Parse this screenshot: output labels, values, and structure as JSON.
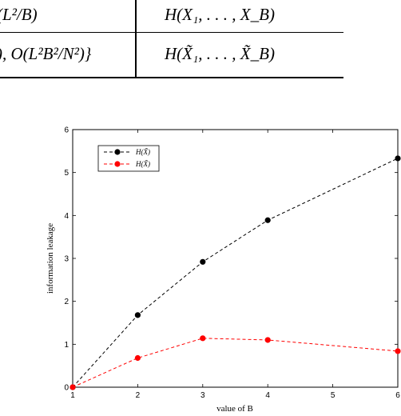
{
  "table": {
    "row1": {
      "left_cell": "(L²/B)",
      "right_cell": "H(X₁, . . . , X_B)"
    },
    "row2": {
      "left_cell": "), O(L²B²/N²)}",
      "right_cell": "H(X̃₁, . . . , X̃_B)"
    }
  },
  "chart_data": {
    "type": "line",
    "xlabel": "value of B",
    "ylabel": "information leakage",
    "xlim": [
      1,
      6
    ],
    "ylim": [
      0,
      6
    ],
    "xticks": [
      1,
      2,
      3,
      4,
      5,
      6
    ],
    "yticks": [
      0,
      1,
      2,
      3,
      4,
      5,
      6
    ],
    "x": [
      1,
      2,
      3,
      4,
      6
    ],
    "series": [
      {
        "name": "H(X̃)",
        "color": "#000000",
        "values": [
          0,
          1.68,
          2.92,
          3.89,
          5.33
        ]
      },
      {
        "name": "H(X̃)",
        "color": "#ff0000",
        "values": [
          0,
          0.68,
          1.14,
          1.1,
          0.84
        ]
      }
    ],
    "legend": "top-left",
    "grid": false
  }
}
